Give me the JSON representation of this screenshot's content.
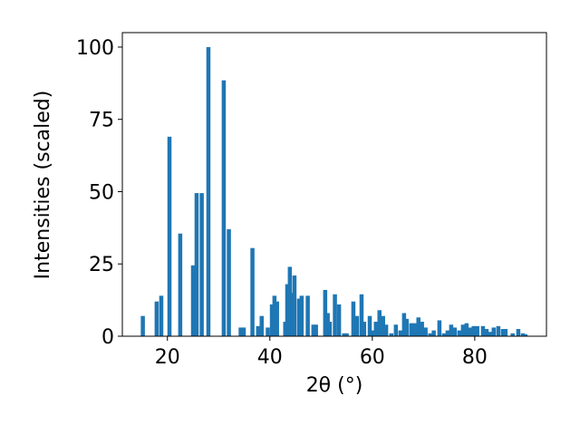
{
  "chart_data": {
    "type": "bar",
    "xlabel": "2θ (°)",
    "ylabel": "Intensities (scaled)",
    "color": "#1f77b4",
    "bar_width": 0.8,
    "xlim": [
      11.2,
      94
    ],
    "ylim": [
      0,
      105
    ],
    "xticks": [
      20,
      40,
      60,
      80
    ],
    "yticks": [
      0,
      25,
      50,
      75,
      100
    ],
    "x": [
      15.2,
      17.9,
      18.8,
      20.4,
      22.5,
      25.0,
      25.7,
      26.7,
      28.0,
      31.0,
      32.0,
      34.3,
      34.9,
      36.6,
      37.7,
      38.4,
      39.6,
      40.4,
      40.9,
      41.4,
      43.0,
      43.4,
      43.9,
      44.4,
      44.8,
      45.7,
      46.2,
      47.4,
      48.5,
      49.0,
      50.8,
      51.3,
      51.7,
      52.7,
      53.5,
      54.5,
      55.0,
      56.3,
      57.0,
      57.9,
      58.4,
      59.5,
      60.2,
      60.7,
      61.4,
      62.1,
      62.7,
      63.7,
      64.6,
      65.5,
      66.2,
      66.7,
      67.6,
      68.3,
      69.0,
      69.7,
      70.4,
      71.3,
      72.0,
      73.1,
      74.0,
      74.7,
      75.4,
      76.1,
      77.0,
      77.7,
      78.4,
      79.1,
      79.8,
      80.5,
      81.6,
      82.3,
      83.0,
      83.7,
      84.6,
      85.5,
      86.0,
      87.4,
      88.5,
      89.4,
      89.9
    ],
    "values": [
      7,
      12,
      14,
      69,
      35.5,
      24.5,
      49.5,
      49.5,
      100,
      88.5,
      37,
      3,
      3,
      30.5,
      3.5,
      7,
      3,
      11,
      14,
      12,
      5,
      18,
      24,
      15,
      21,
      13,
      14,
      14,
      4,
      4,
      16,
      8,
      5,
      14.5,
      11,
      1,
      1,
      12,
      7,
      14.5,
      5,
      7,
      2,
      5,
      9,
      7,
      4,
      1,
      4,
      2,
      8,
      6,
      4.5,
      4.5,
      6.5,
      5,
      3,
      1,
      2,
      5.5,
      1,
      2,
      4,
      3,
      2,
      4,
      4.5,
      3,
      3.5,
      3.5,
      3.5,
      2.5,
      1.5,
      3,
      3.5,
      2.5,
      2.5,
      1,
      2.5,
      1,
      0.7
    ]
  }
}
